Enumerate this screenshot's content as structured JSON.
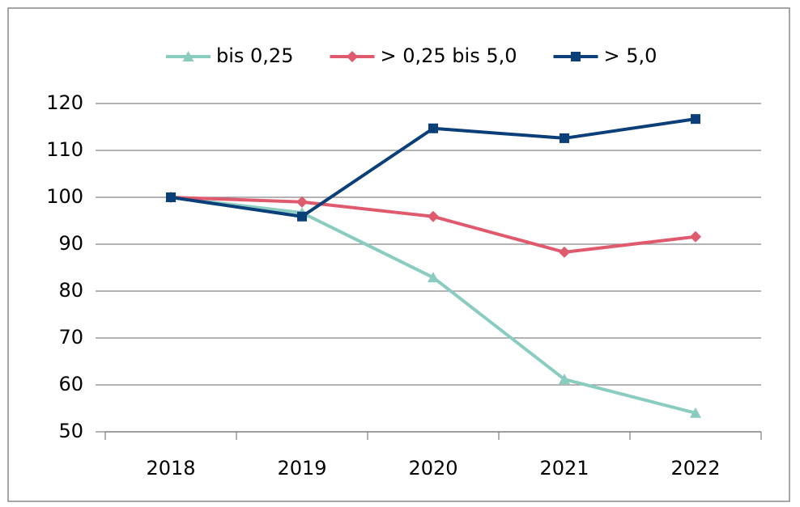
{
  "chart_data": {
    "type": "line",
    "categories": [
      "2018",
      "2019",
      "2020",
      "2021",
      "2022"
    ],
    "series": [
      {
        "name": "bis 0,25",
        "color": "#8accc0",
        "marker": "triangle",
        "values": [
          100,
          96.7,
          82.9,
          61.2,
          54.0
        ]
      },
      {
        "name": "> 0,25 bis 5,0",
        "color": "#e05a6e",
        "marker": "diamond",
        "values": [
          100,
          99.0,
          95.9,
          88.3,
          91.6
        ]
      },
      {
        "name": "> 5,0",
        "color": "#0b3f7a",
        "marker": "square",
        "values": [
          100,
          95.9,
          114.7,
          112.6,
          116.7
        ]
      }
    ],
    "ylim": [
      50,
      120
    ],
    "yticks": [
      50,
      60,
      70,
      80,
      90,
      100,
      110,
      120
    ],
    "grid": true,
    "legend": "top"
  }
}
